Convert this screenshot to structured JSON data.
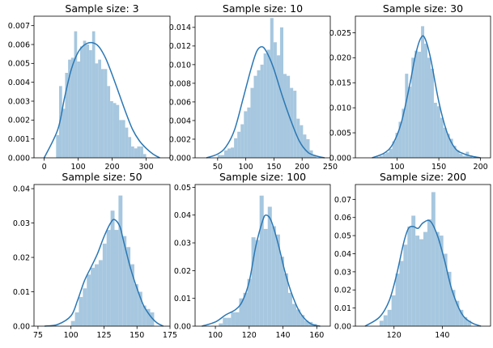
{
  "chart_data": [
    {
      "type": "histogram",
      "title": "Sample size: 3",
      "xlim": [
        -30,
        370
      ],
      "ylim": [
        0,
        0.0075
      ],
      "xticks": [
        0,
        100,
        200,
        300
      ],
      "yticks": [
        0.0,
        0.001,
        0.002,
        0.003,
        0.004,
        0.005,
        0.006,
        0.007
      ],
      "yticklabels": [
        "0.000",
        "0.001",
        "0.002",
        "0.003",
        "0.004",
        "0.005",
        "0.006",
        "0.007"
      ],
      "bar_edges": [
        35,
        300
      ],
      "bar_values": [
        0.0012,
        0.0038,
        0.0026,
        0.0045,
        0.0052,
        0.0053,
        0.0067,
        0.0051,
        0.0059,
        0.0062,
        0.006,
        0.0057,
        0.0067,
        0.005,
        0.0052,
        0.0047,
        0.0047,
        0.0038,
        0.003,
        0.0029,
        0.0028,
        0.002,
        0.002,
        0.0016,
        0.0011,
        0.0006,
        0.0005,
        0.0006,
        0.0006,
        0.0002
      ],
      "kde_x": [
        0,
        40,
        60,
        80,
        100,
        120,
        140,
        160,
        180,
        200,
        220,
        240,
        260,
        280,
        300,
        320,
        340
      ],
      "kde_y": [
        0.0,
        0.0015,
        0.0032,
        0.0047,
        0.0056,
        0.006,
        0.0061,
        0.0059,
        0.0053,
        0.0044,
        0.0034,
        0.0024,
        0.0015,
        0.0009,
        0.0005,
        0.0002,
        0.0
      ]
    },
    {
      "type": "histogram",
      "title": "Sample size: 10",
      "xlim": [
        10,
        250
      ],
      "ylim": [
        0,
        0.0152
      ],
      "xticks": [
        50,
        100,
        150,
        200,
        250
      ],
      "yticks": [
        0.0,
        0.002,
        0.004,
        0.006,
        0.008,
        0.01,
        0.012,
        0.014
      ],
      "yticklabels": [
        "0.000",
        "0.002",
        "0.004",
        "0.006",
        "0.008",
        "0.010",
        "0.012",
        "0.014"
      ],
      "bar_edges": [
        50,
        225
      ],
      "bar_values": [
        0.0003,
        0.0003,
        0.0008,
        0.001,
        0.0011,
        0.0021,
        0.0028,
        0.0036,
        0.005,
        0.0054,
        0.0075,
        0.0088,
        0.0094,
        0.01,
        0.0112,
        0.0116,
        0.015,
        0.0124,
        0.011,
        0.014,
        0.009,
        0.0088,
        0.0075,
        0.0072,
        0.0042,
        0.0035,
        0.0025,
        0.002,
        0.0008,
        0.0003
      ],
      "kde_x": [
        30,
        50,
        65,
        80,
        95,
        110,
        120,
        130,
        140,
        150,
        165,
        180,
        195,
        210,
        225,
        240
      ],
      "kde_y": [
        0.0,
        0.0004,
        0.0012,
        0.003,
        0.0063,
        0.0097,
        0.0115,
        0.0119,
        0.011,
        0.0095,
        0.0066,
        0.004,
        0.0018,
        0.0006,
        0.0002,
        0.0
      ]
    },
    {
      "type": "histogram",
      "title": "Sample size: 30",
      "xlim": [
        50,
        212
      ],
      "ylim": [
        0,
        0.0283
      ],
      "xticks": [
        100,
        150,
        200
      ],
      "yticks": [
        0.0,
        0.005,
        0.01,
        0.015,
        0.02,
        0.025
      ],
      "yticklabels": [
        "0.000",
        "0.005",
        "0.010",
        "0.015",
        "0.020",
        "0.025"
      ],
      "bar_edges": [
        75,
        190
      ],
      "bar_values": [
        0.0002,
        0.0004,
        0.0008,
        0.0011,
        0.0018,
        0.0033,
        0.005,
        0.0072,
        0.0098,
        0.0168,
        0.0142,
        0.02,
        0.0214,
        0.0212,
        0.0263,
        0.0228,
        0.02,
        0.0178,
        0.011,
        0.0103,
        0.008,
        0.006,
        0.0048,
        0.0038,
        0.0024,
        0.0015,
        0.0008,
        0.0004,
        0.0012,
        0.0005
      ],
      "kde_x": [
        70,
        85,
        95,
        105,
        115,
        122,
        128,
        133,
        140,
        150,
        160,
        170,
        180,
        190,
        200
      ],
      "kde_y": [
        0.0,
        0.001,
        0.0028,
        0.007,
        0.0145,
        0.0205,
        0.0238,
        0.024,
        0.02,
        0.0112,
        0.005,
        0.0018,
        0.0008,
        0.0003,
        0.0
      ]
    },
    {
      "type": "histogram",
      "title": "Sample size: 50",
      "xlim": [
        72,
        175
      ],
      "ylim": [
        0,
        0.0412
      ],
      "xticks": [
        75,
        100,
        125,
        150,
        175
      ],
      "yticks": [
        0.0,
        0.01,
        0.02,
        0.03,
        0.04
      ],
      "yticklabels": [
        "0.00",
        "0.01",
        "0.02",
        "0.03",
        "0.04"
      ],
      "bar_edges": [
        100,
        163
      ],
      "bar_values": [
        0.0015,
        0.004,
        0.0085,
        0.011,
        0.015,
        0.017,
        0.018,
        0.0192,
        0.024,
        0.028,
        0.0336,
        0.028,
        0.038,
        0.0262,
        0.023,
        0.018,
        0.0122,
        0.01,
        0.006,
        0.005,
        0.004
      ],
      "kde_x": [
        80,
        90,
        100,
        105,
        110,
        115,
        120,
        125,
        130,
        133,
        137,
        140,
        145,
        150,
        155,
        160,
        165,
        170
      ],
      "kde_y": [
        0.0,
        0.0005,
        0.003,
        0.0075,
        0.013,
        0.017,
        0.021,
        0.026,
        0.03,
        0.031,
        0.029,
        0.0245,
        0.017,
        0.011,
        0.006,
        0.003,
        0.001,
        0.0
      ]
    },
    {
      "type": "histogram",
      "title": "Sample size: 100",
      "xlim": [
        88,
        168
      ],
      "ylim": [
        0,
        0.051
      ],
      "xticks": [
        100,
        120,
        140,
        160
      ],
      "yticks": [
        0.0,
        0.01,
        0.02,
        0.03,
        0.04,
        0.05
      ],
      "yticklabels": [
        "0.00",
        "0.01",
        "0.02",
        "0.03",
        "0.04",
        "0.05"
      ],
      "bar_edges": [
        102,
        160
      ],
      "bar_values": [
        0.001,
        0.003,
        0.003,
        0.005,
        0.005,
        0.01,
        0.012,
        0.017,
        0.032,
        0.031,
        0.047,
        0.035,
        0.043,
        0.036,
        0.033,
        0.025,
        0.019,
        0.012,
        0.008,
        0.006,
        0.004,
        0.002,
        0.0015,
        0.0008
      ],
      "kde_x": [
        92,
        100,
        106,
        112,
        116,
        120,
        124,
        128,
        130,
        133,
        137,
        141,
        145,
        150,
        156,
        162
      ],
      "kde_y": [
        0.0,
        0.0015,
        0.004,
        0.006,
        0.009,
        0.016,
        0.029,
        0.038,
        0.04,
        0.038,
        0.03,
        0.02,
        0.012,
        0.005,
        0.001,
        0.0
      ]
    },
    {
      "type": "histogram",
      "title": "Sample size: 200",
      "xlim": [
        104,
        160
      ],
      "ylim": [
        0,
        0.0782
      ],
      "xticks": [
        120,
        140
      ],
      "yticks": [
        0.0,
        0.01,
        0.02,
        0.03,
        0.04,
        0.05,
        0.06,
        0.07
      ],
      "yticklabels": [
        "0.00",
        "0.01",
        "0.02",
        "0.03",
        "0.04",
        "0.05",
        "0.06",
        "0.07"
      ],
      "bar_edges": [
        114,
        152
      ],
      "bar_values": [
        0.003,
        0.006,
        0.009,
        0.017,
        0.029,
        0.036,
        0.045,
        0.055,
        0.061,
        0.05,
        0.048,
        0.052,
        0.059,
        0.074,
        0.052,
        0.05,
        0.04,
        0.03,
        0.02,
        0.014,
        0.009,
        0.005,
        0.003
      ],
      "kde_x": [
        108,
        114,
        118,
        121,
        124,
        126,
        128,
        130,
        132,
        135,
        138,
        141,
        144,
        148,
        152,
        156
      ],
      "kde_y": [
        0.0,
        0.005,
        0.014,
        0.028,
        0.046,
        0.054,
        0.055,
        0.054,
        0.057,
        0.058,
        0.05,
        0.036,
        0.02,
        0.007,
        0.002,
        0.0
      ]
    }
  ],
  "colors": {
    "bar": "#a6c7df",
    "kde": "#2a77b4",
    "axis": "#000000"
  }
}
